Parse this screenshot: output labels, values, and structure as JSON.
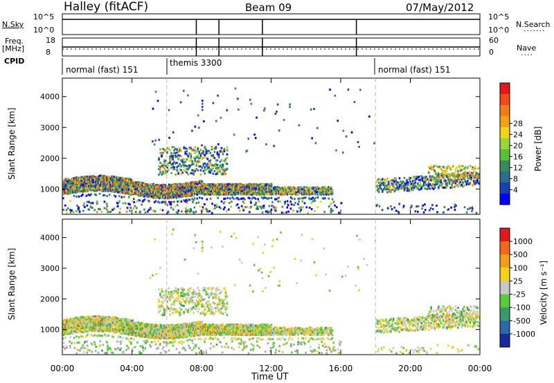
{
  "header": {
    "station": "Halley (fitACF)",
    "beam": "Beam 09",
    "date": "07/May/2012"
  },
  "summary_panels": {
    "nsky_label": "N.Sky",
    "nsky_ticks": [
      "10^5",
      "10^0"
    ],
    "nsearch_label": "N.Search",
    "nsearch_ticks": [
      "10^5",
      "10^0"
    ],
    "freq_label": "Freq.",
    "freq_unit": "[MHz]",
    "freq_ticks": [
      "18",
      "8"
    ],
    "nave_label": "Nave",
    "nave_ticks": [
      "60",
      "0"
    ],
    "cpid_label": "CPID",
    "cpid_segments": [
      {
        "label": "normal (fast) 151",
        "start_hour": 0,
        "end_hour": 6
      },
      {
        "label": "themis 3300",
        "start_hour": 6,
        "end_hour": 18
      },
      {
        "label": "normal (fast) 151",
        "start_hour": 18,
        "end_hour": 24
      }
    ]
  },
  "chart_data": [
    {
      "type": "heatmap",
      "name": "power",
      "ylabel": "Slant Range [km]",
      "xlabel": "Time UT",
      "x_range_hours": [
        0,
        24
      ],
      "ylim": [
        180,
        4600
      ],
      "y_ticks": [
        1000,
        2000,
        3000,
        4000
      ],
      "x_ticks": [
        "00:00",
        "04:00",
        "08:00",
        "12:00",
        "16:00",
        "20:00",
        "00:00"
      ],
      "colorbar": {
        "label": "Power [dB]",
        "ticks": [
          4,
          8,
          12,
          16,
          20,
          24,
          28
        ],
        "colors": [
          "#0000ff",
          "#1a3fb5",
          "#2d6e8c",
          "#3a8a5c",
          "#55c23a",
          "#9ad33a",
          "#f2d21a",
          "#f2a21a",
          "#f07d1a",
          "#ee4a1a",
          "#e01a1a"
        ]
      }
    },
    {
      "type": "heatmap",
      "name": "velocity",
      "ylabel": "Slant Range [km]",
      "xlabel": "Time UT",
      "x_range_hours": [
        0,
        24
      ],
      "ylim": [
        180,
        4600
      ],
      "y_ticks": [
        1000,
        2000,
        3000,
        4000
      ],
      "x_ticks": [
        "00:00",
        "04:00",
        "08:00",
        "12:00",
        "16:00",
        "20:00",
        "00:00"
      ],
      "colorbar": {
        "label": "Velocity [m s⁻¹]",
        "ticks": [
          1000,
          500,
          100,
          25,
          -25,
          -100,
          -500,
          -1000
        ],
        "colors": [
          "#1a2a9a",
          "#2a6aa8",
          "#3a9a6a",
          "#5acc3a",
          "#c8c8c8",
          "#f2d21a",
          "#f0a01a",
          "#ee6a1a",
          "#e01a1a"
        ]
      }
    }
  ]
}
